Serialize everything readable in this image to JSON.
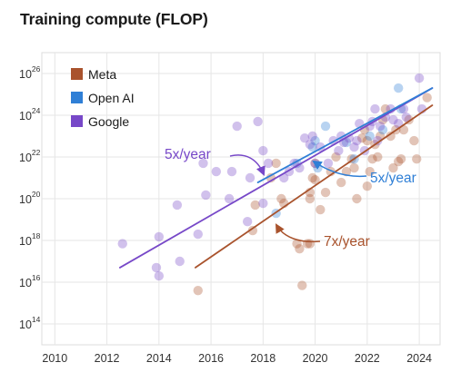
{
  "title": "Training compute (FLOP)",
  "chart_data": {
    "type": "scatter",
    "title": "Training compute (FLOP)",
    "xlabel": "",
    "ylabel": "",
    "y_scale": "log10",
    "xlim": [
      2009.5,
      2024.8
    ],
    "ylim": [
      10000000000000.0,
      1e+27
    ],
    "x_ticks": [
      "2010",
      "2012",
      "2014",
      "2016",
      "2018",
      "2020",
      "2022",
      "2024"
    ],
    "y_ticks": [
      {
        "base": "10",
        "exp": "14",
        "value": 100000000000000.0
      },
      {
        "base": "10",
        "exp": "16",
        "value": 1e+16
      },
      {
        "base": "10",
        "exp": "18",
        "value": 1e+18
      },
      {
        "base": "10",
        "exp": "20",
        "value": 1e+20
      },
      {
        "base": "10",
        "exp": "22",
        "value": 1e+22
      },
      {
        "base": "10",
        "exp": "24",
        "value": 1e+24
      },
      {
        "base": "10",
        "exp": "26",
        "value": 1e+26
      }
    ],
    "grid": true,
    "legend_position": "top-left",
    "series": [
      {
        "name": "Meta",
        "color": "#a9532d",
        "points": [
          [
            2015.5,
            4000000000000000.0
          ],
          [
            2017.6,
            3e+18
          ],
          [
            2017.7,
            5e+19
          ],
          [
            2018.3,
            1e+21
          ],
          [
            2018.5,
            5e+21
          ],
          [
            2018.7,
            1e+20
          ],
          [
            2018.8,
            6e+19
          ],
          [
            2019.3,
            7e+17
          ],
          [
            2019.4,
            4e+17
          ],
          [
            2019.5,
            7000000000000000.0
          ],
          [
            2019.7,
            7e+17
          ],
          [
            2019.8,
            7e+17
          ],
          [
            2019.8,
            1e+20
          ],
          [
            2019.8,
            2e+20
          ],
          [
            2019.9,
            1e+21
          ],
          [
            2020.0,
            8e+20
          ],
          [
            2020.0,
            5e+21
          ],
          [
            2020.2,
            3e+19
          ],
          [
            2020.4,
            2e+20
          ],
          [
            2020.6,
            2e+21
          ],
          [
            2020.8,
            1e+22
          ],
          [
            2021.0,
            6e+20
          ],
          [
            2021.2,
            2e+21
          ],
          [
            2021.4,
            8e+21
          ],
          [
            2021.5,
            3e+21
          ],
          [
            2021.6,
            1e+20
          ],
          [
            2021.8,
            8e+22
          ],
          [
            2021.9,
            2e+23
          ],
          [
            2022.0,
            4e+20
          ],
          [
            2022.0,
            6e+22
          ],
          [
            2022.1,
            2e+21
          ],
          [
            2022.2,
            8e+21
          ],
          [
            2022.3,
            4e+22
          ],
          [
            2022.4,
            1e+22
          ],
          [
            2022.5,
            1e+23
          ],
          [
            2022.6,
            6e+23
          ],
          [
            2022.7,
            2e+24
          ],
          [
            2022.9,
            1e+23
          ],
          [
            2023.0,
            3e+21
          ],
          [
            2023.1,
            2e+23
          ],
          [
            2023.2,
            6e+21
          ],
          [
            2023.3,
            8e+21
          ],
          [
            2023.4,
            2e+23
          ],
          [
            2023.6,
            6e+23
          ],
          [
            2023.8,
            6e+22
          ],
          [
            2023.9,
            8e+21
          ],
          [
            2024.3,
            7e+24
          ]
        ]
      },
      {
        "name": "Open AI",
        "color": "#2f7fd6",
        "points": [
          [
            2018.5,
            2e+19
          ],
          [
            2019.3,
            5e+21
          ],
          [
            2019.9,
            3e+22
          ],
          [
            2020.0,
            6e+22
          ],
          [
            2020.1,
            3e+21
          ],
          [
            2020.4,
            3e+23
          ],
          [
            2021.2,
            5e+22
          ],
          [
            2021.5,
            8e+21
          ],
          [
            2022.1,
            1e+23
          ],
          [
            2022.6,
            2e+23
          ],
          [
            2023.2,
            2e+25
          ],
          [
            2023.3,
            2e+24
          ]
        ]
      },
      {
        "name": "Google",
        "color": "#7748c8",
        "points": [
          [
            2012.6,
            7e+17
          ],
          [
            2013.9,
            5e+16
          ],
          [
            2014.0,
            2e+16
          ],
          [
            2014.0,
            1.5e+18
          ],
          [
            2014.7,
            5e+19
          ],
          [
            2014.8,
            1e+17
          ],
          [
            2015.5,
            2e+18
          ],
          [
            2015.7,
            5e+21
          ],
          [
            2015.8,
            1.5e+20
          ],
          [
            2016.2,
            2e+21
          ],
          [
            2016.7,
            1e+20
          ],
          [
            2016.8,
            2e+21
          ],
          [
            2017.0,
            3e+23
          ],
          [
            2017.4,
            8e+18
          ],
          [
            2017.5,
            1e+21
          ],
          [
            2017.8,
            5e+23
          ],
          [
            2018.0,
            2e+22
          ],
          [
            2018.0,
            6e+19
          ],
          [
            2018.2,
            5e+21
          ],
          [
            2018.8,
            1e+21
          ],
          [
            2019.0,
            2e+21
          ],
          [
            2019.2,
            5e+21
          ],
          [
            2019.4,
            3e+21
          ],
          [
            2019.6,
            8e+22
          ],
          [
            2019.8,
            4e+22
          ],
          [
            2019.9,
            1e+23
          ],
          [
            2020.0,
            5e+21
          ],
          [
            2020.2,
            3e+22
          ],
          [
            2020.5,
            5e+21
          ],
          [
            2020.7,
            6e+22
          ],
          [
            2020.9,
            2e+22
          ],
          [
            2021.0,
            1e+23
          ],
          [
            2021.1,
            5e+22
          ],
          [
            2021.3,
            8e+22
          ],
          [
            2021.5,
            3e+22
          ],
          [
            2021.6,
            6e+22
          ],
          [
            2021.7,
            4e+23
          ],
          [
            2021.9,
            2e+22
          ],
          [
            2022.1,
            3e+23
          ],
          [
            2022.2,
            5e+23
          ],
          [
            2022.3,
            2e+24
          ],
          [
            2022.4,
            6e+22
          ],
          [
            2022.5,
            3e+23
          ],
          [
            2022.7,
            8e+23
          ],
          [
            2022.9,
            2e+24
          ],
          [
            2023.0,
            6e+23
          ],
          [
            2023.2,
            4e+23
          ],
          [
            2023.4,
            2e+24
          ],
          [
            2023.5,
            8e+23
          ],
          [
            2024.0,
            6e+25
          ],
          [
            2024.1,
            2e+24
          ]
        ]
      }
    ],
    "trend_lines": [
      {
        "series": "Google",
        "label": "5x/year",
        "color": "#7748c8",
        "from": [
          2012.5,
          5e+16
        ],
        "to": [
          2024.5,
          2e+25
        ]
      },
      {
        "series": "Open AI",
        "label": "5x/year",
        "color": "#2f7fd6",
        "from": [
          2017.8,
          6e+20
        ],
        "to": [
          2024.5,
          2e+25
        ]
      },
      {
        "series": "Meta",
        "label": "7x/year",
        "color": "#a9532d",
        "from": [
          2015.4,
          5e+16
        ],
        "to": [
          2024.5,
          3e+24
        ]
      }
    ]
  }
}
